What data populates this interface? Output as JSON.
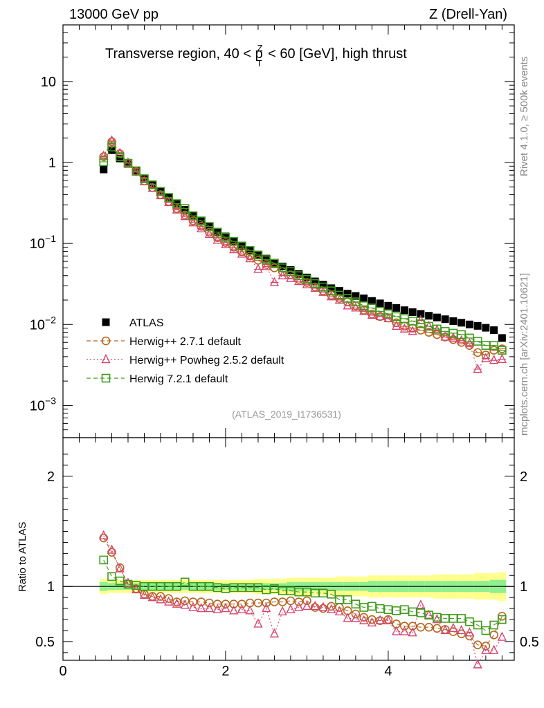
{
  "header": {
    "energy": "13000 GeV pp",
    "process": "Z (Drell-Yan)"
  },
  "side_labels": {
    "rivet": "Rivet 4.1.0, ≥ 500k events",
    "mcplots": "mcplots.cern.ch [arXiv:2401.10621]"
  },
  "chart_data": {
    "type": "scatter",
    "title": "Transverse region, 40 < p_T^Z < 60 [GeV], high thrust",
    "title_parts": {
      "before": "Transverse region, 40 < ",
      "p": "p",
      "sup": "Z",
      "sub": "T",
      "after": " < 60 [GeV], high thrust"
    },
    "analysis_id": "(ATLAS_2019_I1736531)",
    "xlim": [
      0,
      5.55
    ],
    "main": {
      "yscale": "log",
      "ylim": [
        0.0004,
        50
      ],
      "yticks": [
        "10^-3",
        "10^-2",
        "10^-1",
        "1",
        "10"
      ]
    },
    "ratio": {
      "ylabel": "Ratio to ATLAS",
      "ylim": [
        0.33,
        2.35
      ],
      "yticks": [
        0.5,
        1,
        2
      ],
      "ytick_labels": [
        "0.5",
        "1",
        "2"
      ]
    },
    "xticks": [
      0,
      2,
      4
    ],
    "xtick_labels": [
      "0",
      "2",
      "4"
    ],
    "x": [
      0.5,
      0.6,
      0.7,
      0.8,
      0.9,
      1.0,
      1.1,
      1.2,
      1.3,
      1.4,
      1.5,
      1.6,
      1.7,
      1.8,
      1.9,
      2.0,
      2.1,
      2.2,
      2.3,
      2.4,
      2.5,
      2.6,
      2.7,
      2.8,
      2.9,
      3.0,
      3.1,
      3.2,
      3.3,
      3.4,
      3.5,
      3.6,
      3.7,
      3.8,
      3.9,
      4.0,
      4.1,
      4.2,
      4.3,
      4.4,
      4.5,
      4.6,
      4.7,
      4.8,
      4.9,
      5.0,
      5.1,
      5.2,
      5.3,
      5.4
    ],
    "series": [
      {
        "name": "ATLAS",
        "legend": "ATLAS",
        "color": "#000000",
        "marker": "square-filled",
        "values": [
          0.82,
          1.42,
          1.12,
          0.96,
          0.78,
          0.63,
          0.53,
          0.44,
          0.37,
          0.31,
          0.26,
          0.22,
          0.19,
          0.162,
          0.14,
          0.122,
          0.107,
          0.094,
          0.083,
          0.073,
          0.065,
          0.058,
          0.052,
          0.047,
          0.042,
          0.038,
          0.034,
          0.031,
          0.028,
          0.026,
          0.024,
          0.0225,
          0.021,
          0.0195,
          0.0182,
          0.017,
          0.016,
          0.015,
          0.0142,
          0.0135,
          0.0128,
          0.0122,
          0.0116,
          0.011,
          0.0105,
          0.01,
          0.0096,
          0.0091,
          0.0085,
          0.0068
        ]
      },
      {
        "name": "Herwig++ 2.7.1 default",
        "legend": "Herwig++ 2.7.1 default",
        "color": "#b5651d",
        "marker": "circle-open",
        "line": "dashed",
        "values": [
          1.18,
          1.8,
          1.28,
          0.98,
          0.77,
          0.59,
          0.49,
          0.4,
          0.33,
          0.27,
          0.225,
          0.19,
          0.163,
          0.138,
          0.118,
          0.103,
          0.09,
          0.079,
          0.07,
          0.062,
          0.055,
          0.05,
          0.045,
          0.041,
          0.036,
          0.033,
          0.029,
          0.026,
          0.023,
          0.021,
          0.019,
          0.017,
          0.015,
          0.0135,
          0.0125,
          0.012,
          0.0105,
          0.0095,
          0.009,
          0.0085,
          0.008,
          0.0075,
          0.007,
          0.0065,
          0.006,
          0.0055,
          0.0045,
          0.0042,
          0.0048,
          0.005
        ]
      },
      {
        "name": "Herwig++ Powheg 2.5.2 default",
        "legend": "Herwig++ Powheg 2.5.2 default",
        "color": "#d6456e",
        "marker": "triangle-open",
        "line": "dotted",
        "values": [
          1.2,
          1.85,
          1.3,
          0.99,
          0.76,
          0.58,
          0.48,
          0.39,
          0.32,
          0.26,
          0.215,
          0.18,
          0.152,
          0.13,
          0.11,
          0.097,
          0.084,
          0.074,
          0.065,
          0.048,
          0.052,
          0.033,
          0.04,
          0.037,
          0.034,
          0.031,
          0.028,
          0.025,
          0.022,
          0.02,
          0.017,
          0.016,
          0.0145,
          0.013,
          0.0125,
          0.0118,
          0.0095,
          0.0088,
          0.0082,
          0.0112,
          0.0095,
          0.0085,
          0.007,
          0.0068,
          0.0063,
          0.0058,
          0.0028,
          0.0038,
          0.0036,
          0.0037
        ]
      },
      {
        "name": "Herwig 7.2.1 default",
        "legend": "Herwig 7.2.1 default",
        "color": "#3f9b1a",
        "marker": "square-open",
        "line": "dashed",
        "values": [
          1.02,
          1.55,
          1.18,
          0.98,
          0.79,
          0.63,
          0.53,
          0.44,
          0.37,
          0.31,
          0.27,
          0.22,
          0.19,
          0.162,
          0.138,
          0.119,
          0.106,
          0.093,
          0.082,
          0.072,
          0.063,
          0.057,
          0.05,
          0.045,
          0.04,
          0.036,
          0.032,
          0.029,
          0.026,
          0.023,
          0.021,
          0.019,
          0.017,
          0.016,
          0.0145,
          0.0135,
          0.0125,
          0.0118,
          0.011,
          0.0102,
          0.0095,
          0.0088,
          0.0082,
          0.0078,
          0.0075,
          0.0068,
          0.0062,
          0.0055,
          0.0055,
          0.0048
        ]
      }
    ],
    "ratio_series": [
      {
        "name": "Herwig++ 2.7.1 default",
        "values": [
          1.44,
          1.31,
          1.17,
          1.02,
          0.98,
          0.93,
          0.91,
          0.91,
          0.89,
          0.86,
          0.87,
          0.86,
          0.86,
          0.85,
          0.84,
          0.84,
          0.84,
          0.84,
          0.85,
          0.85,
          0.85,
          0.86,
          0.86,
          0.87,
          0.86,
          0.87,
          0.81,
          0.8,
          0.82,
          0.81,
          0.78,
          0.75,
          0.72,
          0.7,
          0.69,
          0.7,
          0.66,
          0.64,
          0.64,
          0.63,
          0.63,
          0.62,
          0.61,
          0.59,
          0.57,
          0.55,
          0.47,
          0.46,
          0.56,
          0.73
        ]
      },
      {
        "name": "Herwig++ Powheg 2.5.2 default",
        "values": [
          1.46,
          1.33,
          1.16,
          1.03,
          0.97,
          0.92,
          0.9,
          0.88,
          0.86,
          0.84,
          0.83,
          0.81,
          0.8,
          0.8,
          0.79,
          0.8,
          0.78,
          0.79,
          0.78,
          0.66,
          0.8,
          0.57,
          0.77,
          0.79,
          0.81,
          0.82,
          0.82,
          0.81,
          0.79,
          0.77,
          0.71,
          0.71,
          0.69,
          0.67,
          0.69,
          0.69,
          0.59,
          0.59,
          0.58,
          0.83,
          0.74,
          0.7,
          0.6,
          0.62,
          0.6,
          0.58,
          0.29,
          0.42,
          0.42,
          0.54
        ]
      },
      {
        "name": "Herwig 7.2.1 default",
        "values": [
          1.24,
          1.09,
          1.05,
          1.02,
          1.01,
          1.0,
          1.0,
          1.0,
          1.0,
          1.0,
          1.04,
          1.0,
          1.0,
          1.0,
          0.99,
          0.98,
          0.99,
          0.99,
          0.99,
          0.99,
          0.97,
          0.98,
          0.96,
          0.96,
          0.95,
          0.95,
          0.94,
          0.94,
          0.93,
          0.88,
          0.88,
          0.84,
          0.81,
          0.82,
          0.8,
          0.79,
          0.78,
          0.79,
          0.77,
          0.76,
          0.74,
          0.72,
          0.71,
          0.71,
          0.71,
          0.68,
          0.65,
          0.6,
          0.65,
          0.7
        ]
      }
    ],
    "ratio_band_inner": [
      0.04,
      0.03,
      0.03,
      0.03,
      0.03,
      0.03,
      0.03,
      0.03,
      0.03,
      0.03,
      0.03,
      0.03,
      0.03,
      0.03,
      0.03,
      0.03,
      0.03,
      0.03,
      0.03,
      0.03,
      0.03,
      0.03,
      0.03,
      0.04,
      0.04,
      0.04,
      0.04,
      0.04,
      0.04,
      0.04,
      0.04,
      0.04,
      0.04,
      0.05,
      0.05,
      0.05,
      0.05,
      0.05,
      0.05,
      0.05,
      0.05,
      0.05,
      0.05,
      0.05,
      0.05,
      0.05,
      0.05,
      0.05,
      0.06,
      0.06
    ],
    "ratio_band_outer": [
      0.07,
      0.06,
      0.06,
      0.06,
      0.06,
      0.06,
      0.06,
      0.06,
      0.06,
      0.06,
      0.06,
      0.06,
      0.06,
      0.06,
      0.06,
      0.06,
      0.06,
      0.06,
      0.06,
      0.07,
      0.07,
      0.07,
      0.07,
      0.08,
      0.08,
      0.08,
      0.08,
      0.08,
      0.08,
      0.09,
      0.09,
      0.09,
      0.09,
      0.1,
      0.1,
      0.1,
      0.1,
      0.1,
      0.1,
      0.1,
      0.1,
      0.11,
      0.11,
      0.11,
      0.11,
      0.11,
      0.12,
      0.12,
      0.12,
      0.13
    ]
  }
}
